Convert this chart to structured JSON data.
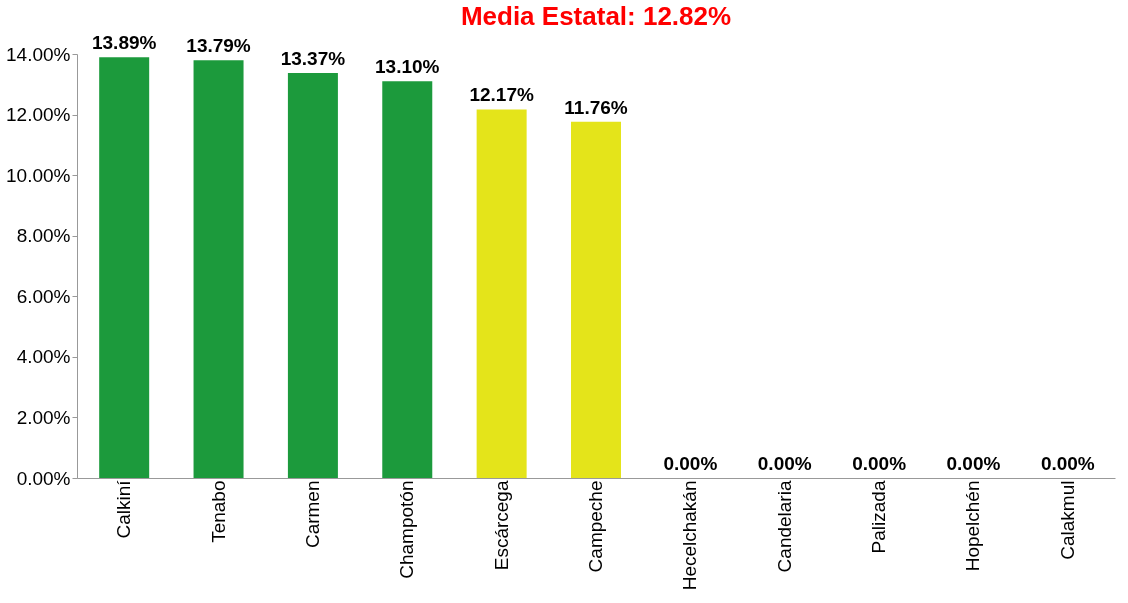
{
  "chart_data": {
    "type": "bar",
    "title": "Media Estatal: 12.82%",
    "categories": [
      "Calkiní",
      "Tenabo",
      "Carmen",
      "Champotón",
      "Escárcega",
      "Campeche",
      "Hecelchakán",
      "Candelaria",
      "Palizada",
      "Hopelchén",
      "Calakmul"
    ],
    "values": [
      13.89,
      13.79,
      13.37,
      13.1,
      12.17,
      11.76,
      0,
      0,
      0,
      0,
      0
    ],
    "colors": [
      "#1c9a3c",
      "#1c9a3c",
      "#1c9a3c",
      "#1c9a3c",
      "#e4e41a",
      "#e4e41a",
      "#6b7a1a",
      "#6b7a1a",
      "#6b7a1a",
      "#6b7a1a",
      "#6b7a1a"
    ],
    "value_labels": [
      "13.89%",
      "13.79%",
      "13.37%",
      "13.10%",
      "12.17%",
      "11.76%",
      "0.00%",
      "0.00%",
      "0.00%",
      "0.00%",
      "0.00%"
    ],
    "ylim": [
      0,
      14
    ],
    "yticks": [
      {
        "value": 0,
        "label": "0.00%"
      },
      {
        "value": 2,
        "label": "2.00%"
      },
      {
        "value": 4,
        "label": "4.00%"
      },
      {
        "value": 6,
        "label": "6.00%"
      },
      {
        "value": 8,
        "label": "8.00%"
      },
      {
        "value": 10,
        "label": "10.00%"
      },
      {
        "value": 12,
        "label": "12.00%"
      },
      {
        "value": 14,
        "label": "14.00%"
      }
    ],
    "grid": false
  }
}
